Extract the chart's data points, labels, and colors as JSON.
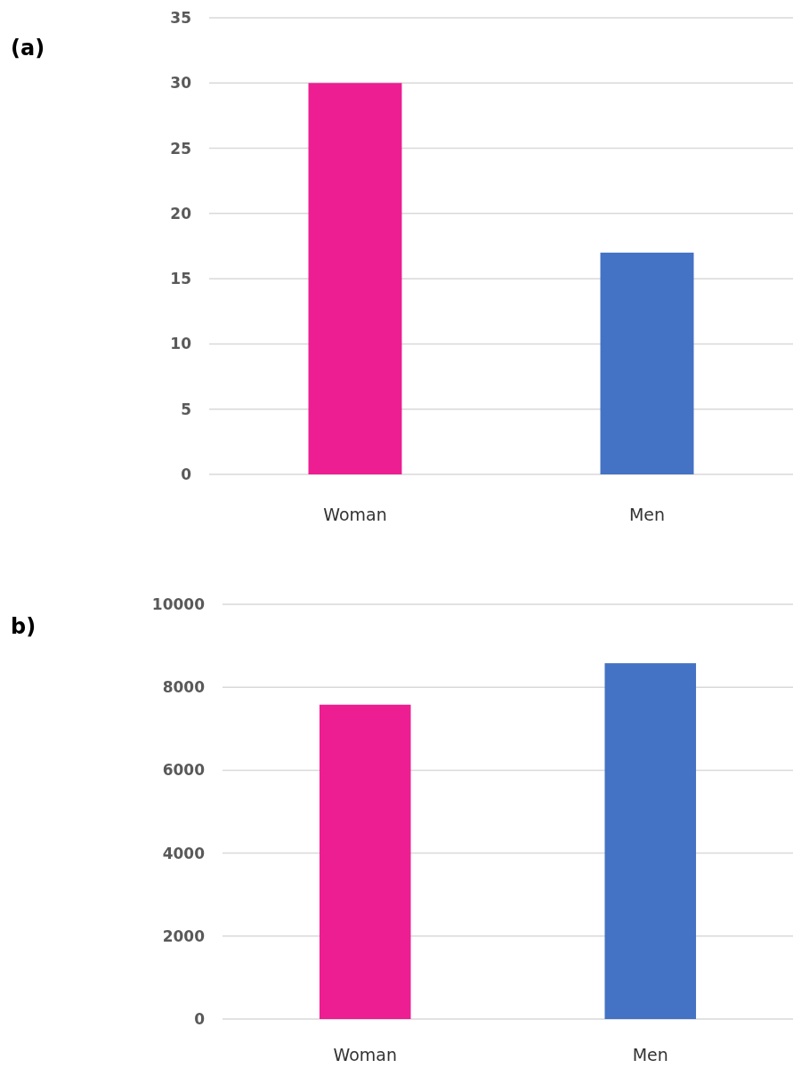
{
  "chart_data": [
    {
      "type": "bar",
      "annotations": [
        "(a)"
      ],
      "categories": [
        "Woman",
        "Men"
      ],
      "values": [
        30,
        17
      ],
      "colors": [
        "#ec1e91",
        "#4472c4"
      ],
      "ylim": [
        0,
        35
      ],
      "yticks": [
        0,
        5,
        10,
        15,
        20,
        25,
        30,
        35
      ],
      "grid": "y"
    },
    {
      "type": "bar",
      "annotations": [
        "b)"
      ],
      "categories": [
        "Woman",
        "Men"
      ],
      "values": [
        7580,
        8580
      ],
      "colors": [
        "#ec1e91",
        "#4472c4"
      ],
      "ylim": [
        0,
        10000
      ],
      "yticks": [
        0,
        2000,
        4000,
        6000,
        8000,
        10000
      ],
      "grid": "y"
    }
  ]
}
